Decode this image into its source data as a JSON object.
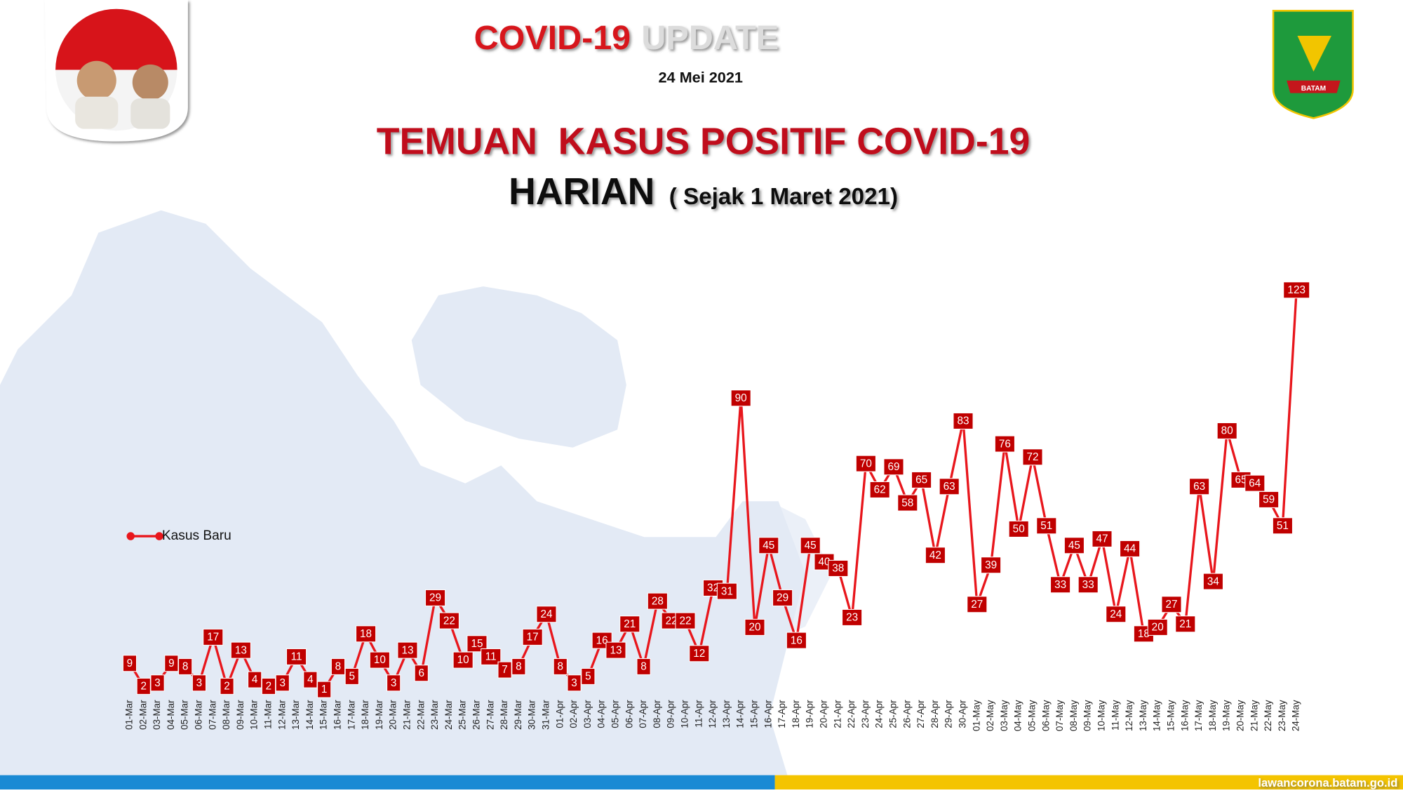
{
  "header": {
    "title_main": "COVID-19",
    "title_faded": "UPDATE",
    "date": "24 Mei 2021",
    "logo_text": "BATAM"
  },
  "chart_data": {
    "type": "line",
    "title": "TEMUAN  KASUS POSITIF COVID-19",
    "subtitle": "HARIAN",
    "subtitle_note": "( Sejak 1 Maret 2021)",
    "categories": [
      "01-Mar",
      "02-Mar",
      "03-Mar",
      "04-Mar",
      "05-Mar",
      "06-Mar",
      "07-Mar",
      "08-Mar",
      "09-Mar",
      "10-Mar",
      "11-Mar",
      "12-Mar",
      "13-Mar",
      "14-Mar",
      "15-Mar",
      "16-Mar",
      "17-Mar",
      "18-Mar",
      "19-Mar",
      "20-Mar",
      "21-Mar",
      "22-Mar",
      "23-Mar",
      "24-Mar",
      "25-Mar",
      "26-Mar",
      "27-Mar",
      "28-Mar",
      "29-Mar",
      "30-Mar",
      "31-Mar",
      "01-Apr",
      "02-Apr",
      "03-Apr",
      "04-Apr",
      "05-Apr",
      "06-Apr",
      "07-Apr",
      "08-Apr",
      "09-Apr",
      "10-Apr",
      "11-Apr",
      "12-Apr",
      "13-Apr",
      "14-Apr",
      "15-Apr",
      "16-Apr",
      "17-Apr",
      "18-Apr",
      "19-Apr",
      "20-Apr",
      "21-Apr",
      "22-Apr",
      "23-Apr",
      "24-Apr",
      "25-Apr",
      "26-Apr",
      "27-Apr",
      "28-Apr",
      "29-Apr",
      "30-Apr",
      "01-May",
      "02-May",
      "03-May",
      "04-May",
      "05-May",
      "06-May",
      "07-May",
      "08-May",
      "09-May",
      "10-May",
      "11-May",
      "12-May",
      "13-May",
      "14-May",
      "15-May",
      "16-May",
      "17-May",
      "18-May",
      "19-May",
      "20-May",
      "21-May",
      "22-May",
      "23-May",
      "24-May"
    ],
    "series": [
      {
        "name": "Kasus Baru",
        "color": "#e8161c",
        "label_color": "#c00000",
        "values": [
          9,
          2,
          3,
          9,
          8,
          3,
          17,
          2,
          13,
          4,
          2,
          3,
          11,
          4,
          1,
          8,
          5,
          18,
          10,
          3,
          13,
          6,
          29,
          22,
          10,
          15,
          11,
          7,
          8,
          17,
          24,
          8,
          3,
          5,
          16,
          13,
          21,
          8,
          28,
          22,
          22,
          12,
          32,
          31,
          90,
          20,
          45,
          29,
          16,
          45,
          40,
          38,
          23,
          70,
          62,
          69,
          58,
          65,
          42,
          63,
          83,
          27,
          39,
          76,
          50,
          72,
          51,
          33,
          45,
          33,
          47,
          24,
          44,
          18,
          20,
          27,
          21,
          63,
          34,
          80,
          65,
          64,
          59,
          51,
          123
        ]
      }
    ],
    "ylim": [
      0,
      130
    ]
  },
  "footer": {
    "url": "lawancorona.batam.go.id"
  }
}
